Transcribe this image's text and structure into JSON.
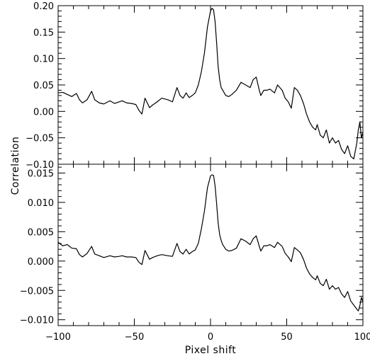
{
  "chart_data": {
    "type": "line",
    "xlabel": "Pixel shift",
    "ylabel": "Correlation",
    "x_ticks": [
      -100,
      -50,
      0,
      50,
      100
    ],
    "x_tick_labels": [
      "−100",
      "−50",
      "0",
      "50",
      "100"
    ],
    "panels": [
      {
        "name": "top",
        "xlim": [
          -100,
          100
        ],
        "ylim": [
          -0.1,
          0.2
        ],
        "y_ticks": [
          -0.1,
          -0.05,
          0.0,
          0.05,
          0.1,
          0.15,
          0.2
        ],
        "y_tick_labels": [
          "−0.10",
          "−0.05",
          "0.00",
          "0.05",
          "0.10",
          "0.15",
          "0.20"
        ],
        "series": [
          {
            "x": [
              -100,
              -97,
              -94,
              -91,
              -88,
              -86,
              -84,
              -81,
              -78,
              -76,
              -73,
              -70,
              -66,
              -63,
              -60,
              -58,
              -55,
              -52,
              -49,
              -47,
              -45,
              -43,
              -40,
              -38,
              -35,
              -32,
              -28,
              -25,
              -22,
              -20,
              -18,
              -16,
              -14,
              -12,
              -10,
              -8,
              -6,
              -4,
              -2,
              0,
              1,
              2,
              3,
              4,
              5,
              6,
              7,
              8,
              10,
              12,
              14,
              17,
              20,
              23,
              26,
              28,
              30,
              32,
              33,
              35,
              37,
              39,
              42,
              44,
              47,
              49,
              51,
              53,
              55,
              57,
              59,
              61,
              63,
              65,
              67,
              69,
              70,
              72,
              74,
              76,
              78,
              80,
              82,
              84,
              86,
              88,
              90,
              92,
              94,
              96,
              97,
              98,
              99,
              100
            ],
            "y": [
              0.035,
              0.036,
              0.032,
              0.028,
              0.034,
              0.022,
              0.016,
              0.022,
              0.038,
              0.022,
              0.016,
              0.014,
              0.02,
              0.015,
              0.018,
              0.02,
              0.016,
              0.015,
              0.013,
              0.002,
              -0.005,
              0.025,
              0.007,
              0.012,
              0.018,
              0.025,
              0.022,
              0.018,
              0.045,
              0.03,
              0.025,
              0.035,
              0.026,
              0.03,
              0.035,
              0.05,
              0.075,
              0.11,
              0.16,
              0.19,
              0.195,
              0.192,
              0.17,
              0.13,
              0.085,
              0.06,
              0.045,
              0.04,
              0.03,
              0.028,
              0.032,
              0.04,
              0.055,
              0.05,
              0.045,
              0.06,
              0.065,
              0.04,
              0.03,
              0.04,
              0.04,
              0.042,
              0.035,
              0.05,
              0.04,
              0.025,
              0.018,
              0.006,
              0.045,
              0.04,
              0.03,
              0.015,
              -0.005,
              -0.02,
              -0.03,
              -0.035,
              -0.025,
              -0.045,
              -0.05,
              -0.035,
              -0.06,
              -0.05,
              -0.06,
              -0.055,
              -0.072,
              -0.08,
              -0.065,
              -0.085,
              -0.09,
              -0.06,
              -0.035,
              -0.02,
              -0.05,
              -0.04
            ]
          }
        ]
      },
      {
        "name": "bottom",
        "xlim": [
          -100,
          100
        ],
        "ylim": [
          -0.011,
          0.0165
        ],
        "y_ticks": [
          -0.01,
          -0.005,
          0.0,
          0.005,
          0.01,
          0.015
        ],
        "y_tick_labels": [
          "−0.010",
          "−0.005",
          "0.000",
          "0.005",
          "0.010",
          "0.015"
        ],
        "series": [
          {
            "x": [
              -100,
              -97,
              -94,
              -91,
              -88,
              -86,
              -84,
              -81,
              -78,
              -76,
              -73,
              -70,
              -66,
              -63,
              -60,
              -58,
              -55,
              -52,
              -49,
              -47,
              -45,
              -43,
              -40,
              -38,
              -35,
              -32,
              -28,
              -25,
              -22,
              -20,
              -18,
              -16,
              -14,
              -12,
              -10,
              -8,
              -6,
              -4,
              -2,
              0,
              1,
              2,
              3,
              4,
              5,
              6,
              7,
              8,
              10,
              12,
              14,
              17,
              20,
              23,
              26,
              28,
              30,
              32,
              33,
              35,
              37,
              39,
              42,
              44,
              47,
              49,
              51,
              53,
              55,
              57,
              59,
              61,
              63,
              65,
              67,
              69,
              70,
              72,
              74,
              76,
              78,
              80,
              82,
              84,
              86,
              88,
              90,
              92,
              94,
              96,
              97,
              98,
              99,
              100
            ],
            "y": [
              0.0032,
              0.0026,
              0.0028,
              0.0022,
              0.0021,
              0.0011,
              0.0007,
              0.0013,
              0.0025,
              0.0012,
              0.0009,
              0.0006,
              0.0009,
              0.0007,
              0.0008,
              0.0009,
              0.0007,
              0.0007,
              0.0006,
              -0.0002,
              -0.0006,
              0.0018,
              0.0003,
              0.0006,
              0.0009,
              0.0011,
              0.0009,
              0.0008,
              0.003,
              0.0016,
              0.0012,
              0.002,
              0.0012,
              0.0016,
              0.0019,
              0.003,
              0.0055,
              0.0085,
              0.0125,
              0.0145,
              0.0147,
              0.0146,
              0.0128,
              0.0098,
              0.0065,
              0.0045,
              0.0035,
              0.0028,
              0.002,
              0.0017,
              0.0018,
              0.0022,
              0.0038,
              0.0034,
              0.0028,
              0.0038,
              0.0043,
              0.0025,
              0.0017,
              0.0026,
              0.0026,
              0.0028,
              0.0023,
              0.0032,
              0.0025,
              0.0013,
              0.0007,
              -0.0001,
              0.0023,
              0.0019,
              0.0014,
              0.0003,
              -0.0012,
              -0.0022,
              -0.0028,
              -0.0032,
              -0.0025,
              -0.0038,
              -0.0042,
              -0.0031,
              -0.0048,
              -0.0042,
              -0.0048,
              -0.0045,
              -0.0056,
              -0.0062,
              -0.0052,
              -0.0068,
              -0.0075,
              -0.0082,
              -0.0085,
              -0.0076,
              -0.0062,
              -0.007
            ]
          }
        ]
      }
    ]
  }
}
